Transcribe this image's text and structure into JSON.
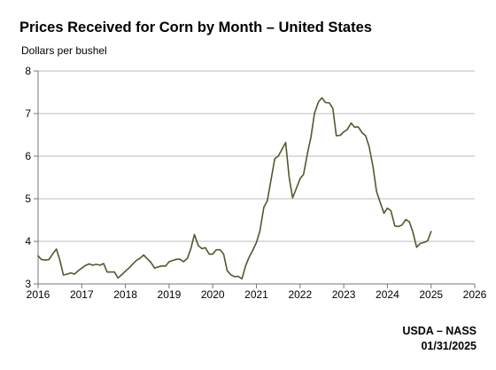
{
  "chart_data": {
    "type": "line",
    "title": "Prices Received for Corn by Month – United States",
    "ylabel": "Dollars per bushel",
    "xlabel": "",
    "xlim": [
      2016,
      2026
    ],
    "ylim": [
      3,
      8
    ],
    "x_ticks": [
      2016,
      2017,
      2018,
      2019,
      2020,
      2021,
      2022,
      2023,
      2024,
      2025,
      2026
    ],
    "y_ticks": [
      3,
      4,
      5,
      6,
      7,
      8
    ],
    "grid": "horizontal",
    "line_color": "#4d5b2b",
    "series": [
      {
        "x": [
          2016.0,
          2016.08,
          2016.17,
          2016.25,
          2016.33,
          2016.42,
          2016.5,
          2016.58,
          2016.67,
          2016.75,
          2016.83,
          2016.92,
          2017.0,
          2017.08,
          2017.17,
          2017.25,
          2017.33,
          2017.42,
          2017.5,
          2017.58,
          2017.67,
          2017.75,
          2017.83,
          2017.92,
          2018.0,
          2018.08,
          2018.17,
          2018.25,
          2018.33,
          2018.42,
          2018.5,
          2018.58,
          2018.67,
          2018.75,
          2018.83,
          2018.92,
          2019.0,
          2019.08,
          2019.17,
          2019.25,
          2019.33,
          2019.42,
          2019.5,
          2019.58,
          2019.67,
          2019.75,
          2019.83,
          2019.92,
          2020.0,
          2020.08,
          2020.17,
          2020.25,
          2020.33,
          2020.42,
          2020.5,
          2020.58,
          2020.67,
          2020.75,
          2020.83,
          2020.92,
          2021.0,
          2021.08,
          2021.17,
          2021.25,
          2021.33,
          2021.42,
          2021.5,
          2021.58,
          2021.67,
          2021.75,
          2021.83,
          2021.92,
          2022.0,
          2022.08,
          2022.17,
          2022.25,
          2022.33,
          2022.42,
          2022.5,
          2022.58,
          2022.67,
          2022.75,
          2022.83,
          2022.92,
          2023.0,
          2023.08,
          2023.17,
          2023.25,
          2023.33,
          2023.42,
          2023.5,
          2023.58,
          2023.67,
          2023.75,
          2023.83,
          2023.92,
          2024.0,
          2024.08,
          2024.17,
          2024.25,
          2024.33,
          2024.42,
          2024.5,
          2024.58,
          2024.67,
          2024.75,
          2024.83,
          2024.92,
          2025.0
        ],
        "values": [
          3.66,
          3.57,
          3.56,
          3.57,
          3.7,
          3.82,
          3.55,
          3.21,
          3.23,
          3.26,
          3.23,
          3.31,
          3.37,
          3.43,
          3.47,
          3.44,
          3.46,
          3.44,
          3.48,
          3.28,
          3.28,
          3.28,
          3.14,
          3.22,
          3.3,
          3.37,
          3.47,
          3.55,
          3.6,
          3.68,
          3.59,
          3.51,
          3.37,
          3.4,
          3.42,
          3.42,
          3.52,
          3.55,
          3.58,
          3.58,
          3.52,
          3.6,
          3.83,
          4.16,
          3.9,
          3.83,
          3.85,
          3.7,
          3.7,
          3.8,
          3.8,
          3.7,
          3.31,
          3.21,
          3.17,
          3.18,
          3.12,
          3.42,
          3.62,
          3.8,
          3.97,
          4.24,
          4.8,
          4.95,
          5.42,
          5.94,
          6.0,
          6.15,
          6.32,
          5.5,
          5.02,
          5.26,
          5.47,
          5.57,
          6.07,
          6.45,
          7.01,
          7.27,
          7.37,
          7.26,
          7.25,
          7.12,
          6.48,
          6.49,
          6.57,
          6.62,
          6.78,
          6.68,
          6.69,
          6.55,
          6.48,
          6.23,
          5.76,
          5.17,
          4.93,
          4.66,
          4.78,
          4.72,
          4.36,
          4.35,
          4.38,
          4.51,
          4.46,
          4.23,
          3.86,
          3.95,
          3.97,
          4.01,
          4.23
        ]
      }
    ]
  },
  "footer": {
    "source": "USDA – NASS",
    "date": "01/31/2025"
  }
}
